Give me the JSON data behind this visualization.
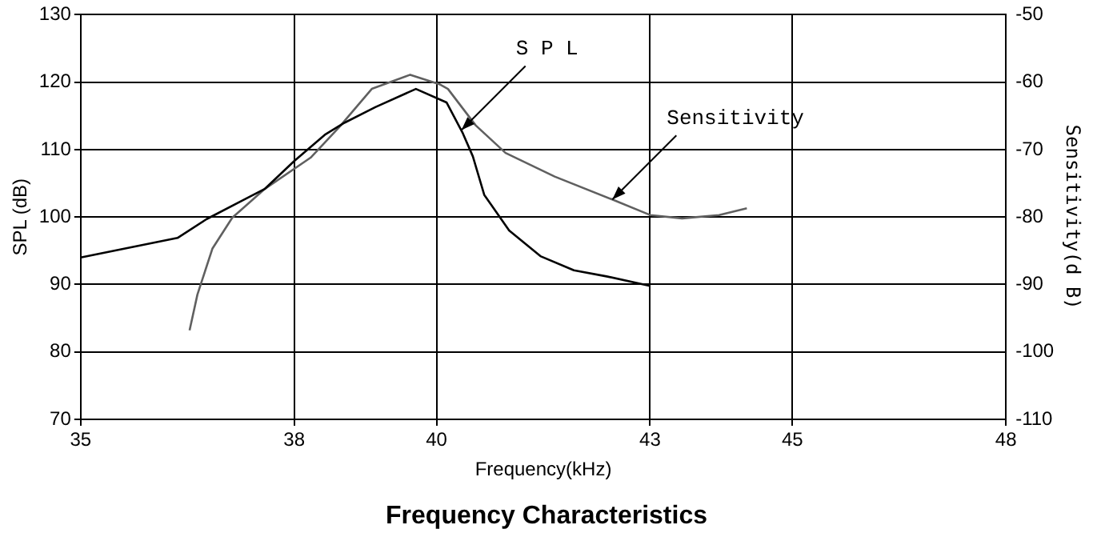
{
  "chart_data": {
    "type": "line",
    "title": "Frequency Characteristics",
    "xlabel": "Frequency(kHz)",
    "ylabel": "SPL (dB)",
    "y2label": "Sensitivity(d B)",
    "xlim": [
      35,
      48
    ],
    "xticks": [
      35,
      38,
      40,
      43,
      45,
      48
    ],
    "ylim": [
      70,
      130
    ],
    "yticks": [
      70,
      80,
      90,
      100,
      110,
      120,
      130
    ],
    "y2lim": [
      -110,
      -50
    ],
    "y2ticks": [
      -110,
      -100,
      -90,
      -80,
      -70,
      -60,
      -50
    ],
    "grid": true,
    "legend": false,
    "marker": "none",
    "line_style": "solid",
    "annotations": [
      {
        "text": "S P L",
        "x": 40.35,
        "y": 112.9
      },
      {
        "text": "Sensitivity",
        "x": 42.47,
        "y": 102.6
      }
    ],
    "series": [
      {
        "color": "#000000",
        "x": [
          35,
          36.36,
          36.77,
          37.59,
          38,
          38.43,
          38.71,
          39.14,
          39.71,
          40.14,
          40.37,
          40.51,
          40.67,
          41.02,
          41.46,
          41.93,
          42.39,
          43
        ],
        "values": [
          94.0,
          96.9,
          99.7,
          104.2,
          108.3,
          112.2,
          114.0,
          116.3,
          119.0,
          117.0,
          112.4,
          109.0,
          103.3,
          98.0,
          94.2,
          92.1,
          91.2,
          89.8
        ]
      },
      {
        "color": "#606060",
        "axis": "y2",
        "x": [
          36.53,
          36.64,
          36.85,
          37.13,
          37.59,
          38.23,
          38.63,
          39.09,
          39.63,
          40.04,
          40.16,
          40.55,
          40.97,
          41.66,
          42.47,
          43,
          43.45,
          43.97,
          44.36
        ],
        "values": [
          -96.8,
          -91.5,
          -84.7,
          -80.1,
          -75.8,
          -71.2,
          -66.7,
          -61.0,
          -58.9,
          -60.3,
          -61.0,
          -66.4,
          -70.5,
          -74.0,
          -77.4,
          -79.7,
          -80.2,
          -79.7,
          -78.7
        ]
      }
    ]
  }
}
